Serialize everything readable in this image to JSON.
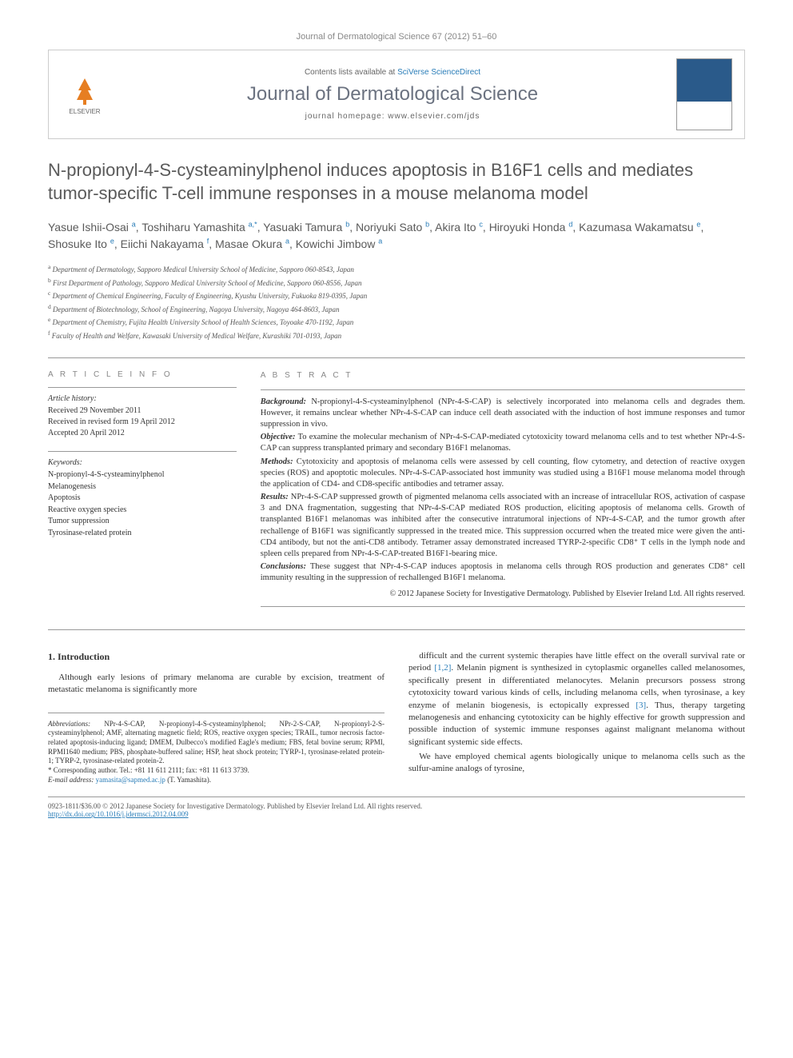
{
  "journal_ref": "Journal of Dermatological Science 67 (2012) 51–60",
  "header": {
    "contents_prefix": "Contents lists available at ",
    "contents_link": "SciVerse ScienceDirect",
    "journal_name": "Journal of Dermatological Science",
    "homepage_prefix": "journal homepage: ",
    "homepage_url": "www.elsevier.com/jds",
    "publisher": "ELSEVIER"
  },
  "title": "N-propionyl-4-S-cysteaminylphenol induces apoptosis in B16F1 cells and mediates tumor-specific T-cell immune responses in a mouse melanoma model",
  "authors_html": "Yasue Ishii-Osai <sup>a</sup>, Toshiharu Yamashita <sup>a,*</sup>, Yasuaki Tamura <sup>b</sup>, Noriyuki Sato <sup>b</sup>, Akira Ito <sup>c</sup>, Hiroyuki Honda <sup>d</sup>, Kazumasa Wakamatsu <sup>e</sup>, Shosuke Ito <sup>e</sup>, Eiichi Nakayama <sup>f</sup>, Masae Okura <sup>a</sup>, Kowichi Jimbow <sup>a</sup>",
  "affiliations": [
    {
      "sup": "a",
      "text": "Department of Dermatology, Sapporo Medical University School of Medicine, Sapporo 060-8543, Japan"
    },
    {
      "sup": "b",
      "text": "First Department of Pathology, Sapporo Medical University School of Medicine, Sapporo 060-8556, Japan"
    },
    {
      "sup": "c",
      "text": "Department of Chemical Engineering, Faculty of Engineering, Kyushu University, Fukuoka 819-0395, Japan"
    },
    {
      "sup": "d",
      "text": "Department of Biotechnology, School of Engineering, Nagoya University, Nagoya 464-8603, Japan"
    },
    {
      "sup": "e",
      "text": "Department of Chemistry, Fujita Health University School of Health Sciences, Toyoake 470-1192, Japan"
    },
    {
      "sup": "f",
      "text": "Faculty of Health and Welfare, Kawasaki University of Medical Welfare, Kurashiki 701-0193, Japan"
    }
  ],
  "info_labels": {
    "article_info": "A R T I C L E   I N F O",
    "abstract": "A B S T R A C T"
  },
  "history": {
    "title": "Article history:",
    "received": "Received 29 November 2011",
    "revised": "Received in revised form 19 April 2012",
    "accepted": "Accepted 20 April 2012"
  },
  "keywords": {
    "title": "Keywords:",
    "items": [
      "N-propionyl-4-S-cysteaminylphenol",
      "Melanogenesis",
      "Apoptosis",
      "Reactive oxygen species",
      "Tumor suppression",
      "Tyrosinase-related protein"
    ]
  },
  "abstract": {
    "background_label": "Background:",
    "background": "N-propionyl-4-S-cysteaminylphenol (NPr-4-S-CAP) is selectively incorporated into melanoma cells and degrades them. However, it remains unclear whether NPr-4-S-CAP can induce cell death associated with the induction of host immune responses and tumor suppression in vivo.",
    "objective_label": "Objective:",
    "objective": "To examine the molecular mechanism of NPr-4-S-CAP-mediated cytotoxicity toward melanoma cells and to test whether NPr-4-S-CAP can suppress transplanted primary and secondary B16F1 melanomas.",
    "methods_label": "Methods:",
    "methods": "Cytotoxicity and apoptosis of melanoma cells were assessed by cell counting, flow cytometry, and detection of reactive oxygen species (ROS) and apoptotic molecules. NPr-4-S-CAP-associated host immunity was studied using a B16F1 mouse melanoma model through the application of CD4- and CD8-specific antibodies and tetramer assay.",
    "results_label": "Results:",
    "results": "NPr-4-S-CAP suppressed growth of pigmented melanoma cells associated with an increase of intracellular ROS, activation of caspase 3 and DNA fragmentation, suggesting that NPr-4-S-CAP mediated ROS production, eliciting apoptosis of melanoma cells. Growth of transplanted B16F1 melanomas was inhibited after the consecutive intratumoral injections of NPr-4-S-CAP, and the tumor growth after rechallenge of B16F1 was significantly suppressed in the treated mice. This suppression occurred when the treated mice were given the anti-CD4 antibody, but not the anti-CD8 antibody. Tetramer assay demonstrated increased TYRP-2-specific CD8⁺ T cells in the lymph node and spleen cells prepared from NPr-4-S-CAP-treated B16F1-bearing mice.",
    "conclusions_label": "Conclusions:",
    "conclusions": "These suggest that NPr-4-S-CAP induces apoptosis in melanoma cells through ROS production and generates CD8⁺ cell immunity resulting in the suppression of rechallenged B16F1 melanoma.",
    "copyright": "© 2012 Japanese Society for Investigative Dermatology. Published by Elsevier Ireland Ltd. All rights reserved."
  },
  "body": {
    "intro_heading": "1. Introduction",
    "p1": "Although early lesions of primary melanoma are curable by excision, treatment of metastatic melanoma is significantly more",
    "p2": "difficult and the current systemic therapies have little effect on the overall survival rate or period [1,2]. Melanin pigment is synthesized in cytoplasmic organelles called melanosomes, specifically present in differentiated melanocytes. Melanin precursors possess strong cytotoxicity toward various kinds of cells, including melanoma cells, when tyrosinase, a key enzyme of melanin biogenesis, is ectopically expressed [3]. Thus, therapy targeting melanogenesis and enhancing cytotoxicity can be highly effective for growth suppression and possible induction of systemic immune responses against malignant melanoma without significant systemic side effects.",
    "p3": "We have employed chemical agents biologically unique to melanoma cells such as the sulfur-amine analogs of tyrosine,"
  },
  "footnotes": {
    "abbrev_label": "Abbreviations:",
    "abbrev": "NPr-4-S-CAP, N-propionyl-4-S-cysteaminylphenol; NPr-2-S-CAP, N-propionyl-2-S-cysteaminylphenol; AMF, alternating magnetic field; ROS, reactive oxygen species; TRAIL, tumor necrosis factor-related apoptosis-inducing ligand; DMEM, Dulbecco's modified Eagle's medium; FBS, fetal bovine serum; RPMI, RPMI1640 medium; PBS, phosphate-buffered saline; HSP, heat shock protein; TYRP-1, tyrosinase-related protein-1; TYRP-2, tyrosinase-related protein-2.",
    "corr_label": "* Corresponding author.",
    "corr": "Tel.: +81 11 611 2111; fax: +81 11 613 3739.",
    "email_label": "E-mail address:",
    "email": "yamasita@sapmed.ac.jp",
    "email_name": "(T. Yamashita)."
  },
  "footer": {
    "issn": "0923-1811/$36.00 © 2012 Japanese Society for Investigative Dermatology. Published by Elsevier Ireland Ltd. All rights reserved.",
    "doi": "http://dx.doi.org/10.1016/j.jdermsci.2012.04.009"
  },
  "colors": {
    "link": "#2a7db8",
    "heading_gray": "#5a5a5a",
    "text": "#333333",
    "muted": "#888888"
  }
}
